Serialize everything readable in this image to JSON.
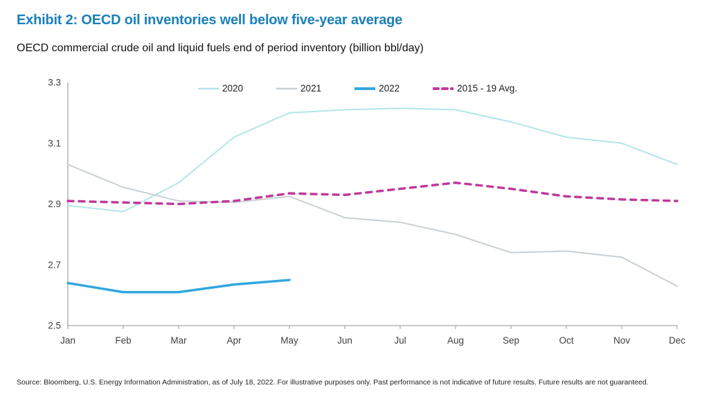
{
  "chart_data": {
    "type": "line",
    "title": "Exhibit 2: OECD oil inventories well below five-year average",
    "subtitle": "OECD commercial crude oil and liquid fuels end of period inventory (billion bbl/day)",
    "categories": [
      "Jan",
      "Feb",
      "Mar",
      "Apr",
      "May",
      "Jun",
      "Jul",
      "Aug",
      "Sep",
      "Oct",
      "Nov",
      "Dec"
    ],
    "ylim": [
      2.5,
      3.3
    ],
    "y_ticks": [
      2.5,
      2.7,
      2.9,
      3.1,
      3.3
    ],
    "grid": false,
    "legend_position": "top-center",
    "series": [
      {
        "name": "2020",
        "color": "#b2e5e7",
        "style": "solid",
        "width": 2,
        "values": [
          2.895,
          2.875,
          2.97,
          3.12,
          3.2,
          3.21,
          3.215,
          3.21,
          3.17,
          3.12,
          3.1,
          3.03
        ]
      },
      {
        "name": "2021",
        "color": "#c9d0d5",
        "style": "solid",
        "width": 2,
        "values": [
          3.03,
          2.955,
          2.91,
          2.905,
          2.925,
          2.855,
          2.84,
          2.8,
          2.74,
          2.745,
          2.725,
          2.63
        ]
      },
      {
        "name": "2022",
        "color": "#32a7e0",
        "style": "solid",
        "width": 3.5,
        "values": [
          2.64,
          2.61,
          2.61,
          2.635,
          2.65
        ]
      },
      {
        "name": "2015 - 19 Avg.",
        "color": "#c0399c",
        "style": "dashed",
        "width": 3.5,
        "values": [
          2.91,
          2.905,
          2.9,
          2.91,
          2.935,
          2.93,
          2.95,
          2.97,
          2.95,
          2.925,
          2.915,
          2.91
        ]
      }
    ]
  },
  "footer": {
    "source": "Source: Bloomberg, U.S. Energy Information Administration, as of July 18, 2022. For illustrative purposes only. Past performance is not indicative of future results. Future results are not guaranteed."
  },
  "colors": {
    "title_text": "#1b80b8",
    "axis": "#a6a6a6",
    "tick_label": "#3f3f3f",
    "legend_text": "#1a1a1a",
    "footer_text": "#222222"
  }
}
